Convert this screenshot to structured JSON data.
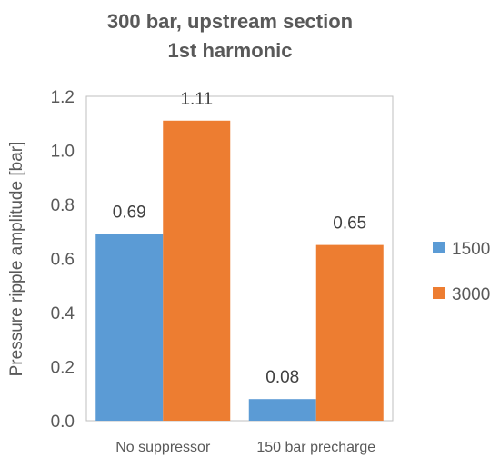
{
  "chart_data": {
    "type": "bar",
    "title_line1": "300 bar, upstream section",
    "title_line2": "1st harmonic",
    "ylabel": "Pressure ripple amplitude [bar]",
    "xlabel": "",
    "categories": [
      "No suppressor",
      "150 bar precharge"
    ],
    "series": [
      {
        "name": "1500",
        "values": [
          0.69,
          0.08
        ],
        "labels": [
          "0.69",
          "0.08"
        ],
        "color": "#5B9BD5"
      },
      {
        "name": "3000",
        "values": [
          1.11,
          0.65
        ],
        "labels": [
          "1.11",
          "0.65"
        ],
        "color": "#ED7D31"
      }
    ],
    "ylim": [
      0,
      1.2
    ],
    "yticks": [
      "0.0",
      "0.2",
      "0.4",
      "0.6",
      "0.8",
      "1.0",
      "1.2"
    ],
    "grid": false,
    "legend": "right"
  }
}
